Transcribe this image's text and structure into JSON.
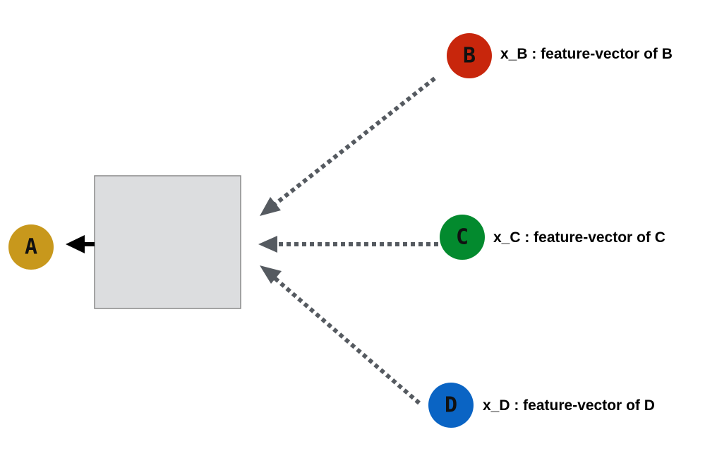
{
  "nodes": {
    "a": {
      "letter": "A",
      "color": "#C8981C"
    },
    "b": {
      "letter": "B",
      "color": "#C8260C",
      "label": "x_B : feature-vector of B"
    },
    "c": {
      "letter": "C",
      "color": "#038A2E",
      "label": "x_C : feature-vector of C"
    },
    "d": {
      "letter": "D",
      "color": "#0A64C4",
      "label": "x_D : feature-vector of D"
    }
  },
  "box": {
    "fill": "#DCDDDF",
    "stroke": "#8A8A8A"
  },
  "edges": {
    "dotted_color": "#555A60",
    "output_color": "#000000"
  }
}
